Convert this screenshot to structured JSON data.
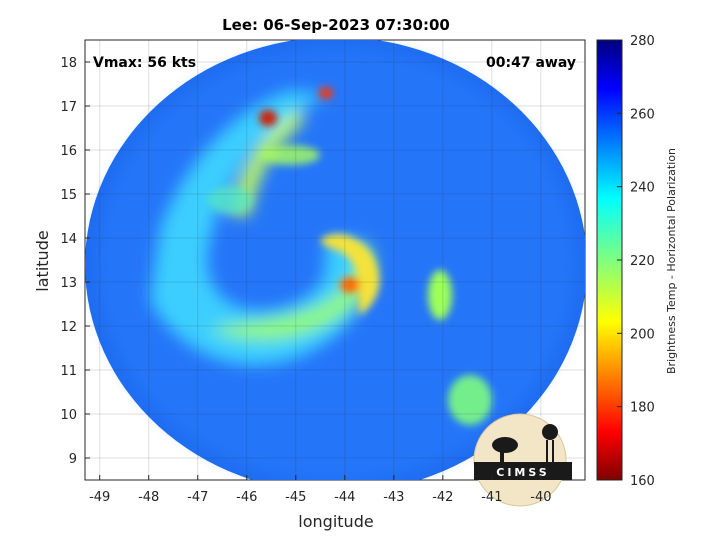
{
  "chart_data": {
    "type": "heatmap",
    "title": "Lee: 06-Sep-2023 07:30:00",
    "xlabel": "longitude",
    "ylabel": "latitude",
    "xlim": [
      -49.3,
      -39.1
    ],
    "ylim": [
      8.5,
      18.5
    ],
    "x_ticks": [
      -49,
      -48,
      -47,
      -46,
      -45,
      -44,
      -43,
      -42,
      -41,
      -40
    ],
    "y_ticks": [
      9,
      10,
      11,
      12,
      13,
      14,
      15,
      16,
      17,
      18
    ],
    "grid": true,
    "annotations": {
      "vmax": "Vmax: 56 kts",
      "away": "00:47 away"
    },
    "colorbar": {
      "label": "Brightness Temp - Horizontal Polarization",
      "range": [
        160,
        280
      ],
      "ticks": [
        280,
        260,
        240,
        220,
        200,
        180,
        160
      ],
      "colormap": "jet"
    },
    "logo": "CIMSS"
  }
}
